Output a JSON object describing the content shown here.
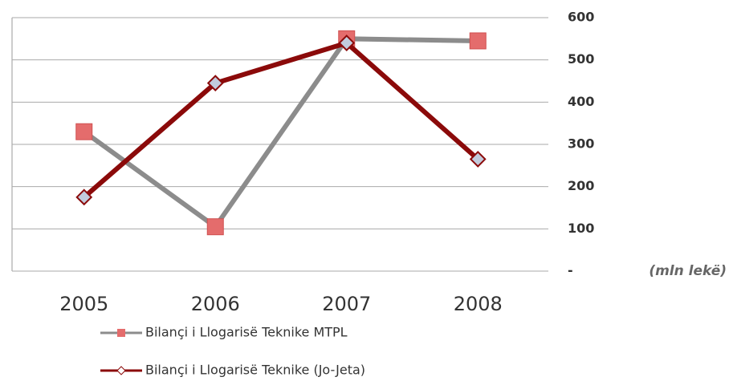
{
  "chart_data": {
    "type": "line",
    "categories": [
      "2005",
      "2006",
      "2007",
      "2008"
    ],
    "series": [
      {
        "name": "Bilançi i Llogarisë Teknike MTPL",
        "color": "#8c8c8c",
        "marker": "square",
        "marker_color": "#e46c6c",
        "values": [
          330,
          105,
          550,
          545
        ]
      },
      {
        "name": "Bilançi i Llogarisë Teknike (Jo-Jeta)",
        "color": "#8b0a0a",
        "marker": "diamond",
        "marker_color": "#c2cbdc",
        "values": [
          175,
          445,
          540,
          265
        ]
      }
    ],
    "ylim": [
      0,
      600
    ],
    "yticks": [
      {
        "value": 0,
        "label": "-"
      },
      100,
      200,
      300,
      400,
      500,
      600
    ],
    "y_axis_side": "right",
    "grid": true,
    "annotation": "(mln lekë)",
    "legend": "bottom"
  }
}
